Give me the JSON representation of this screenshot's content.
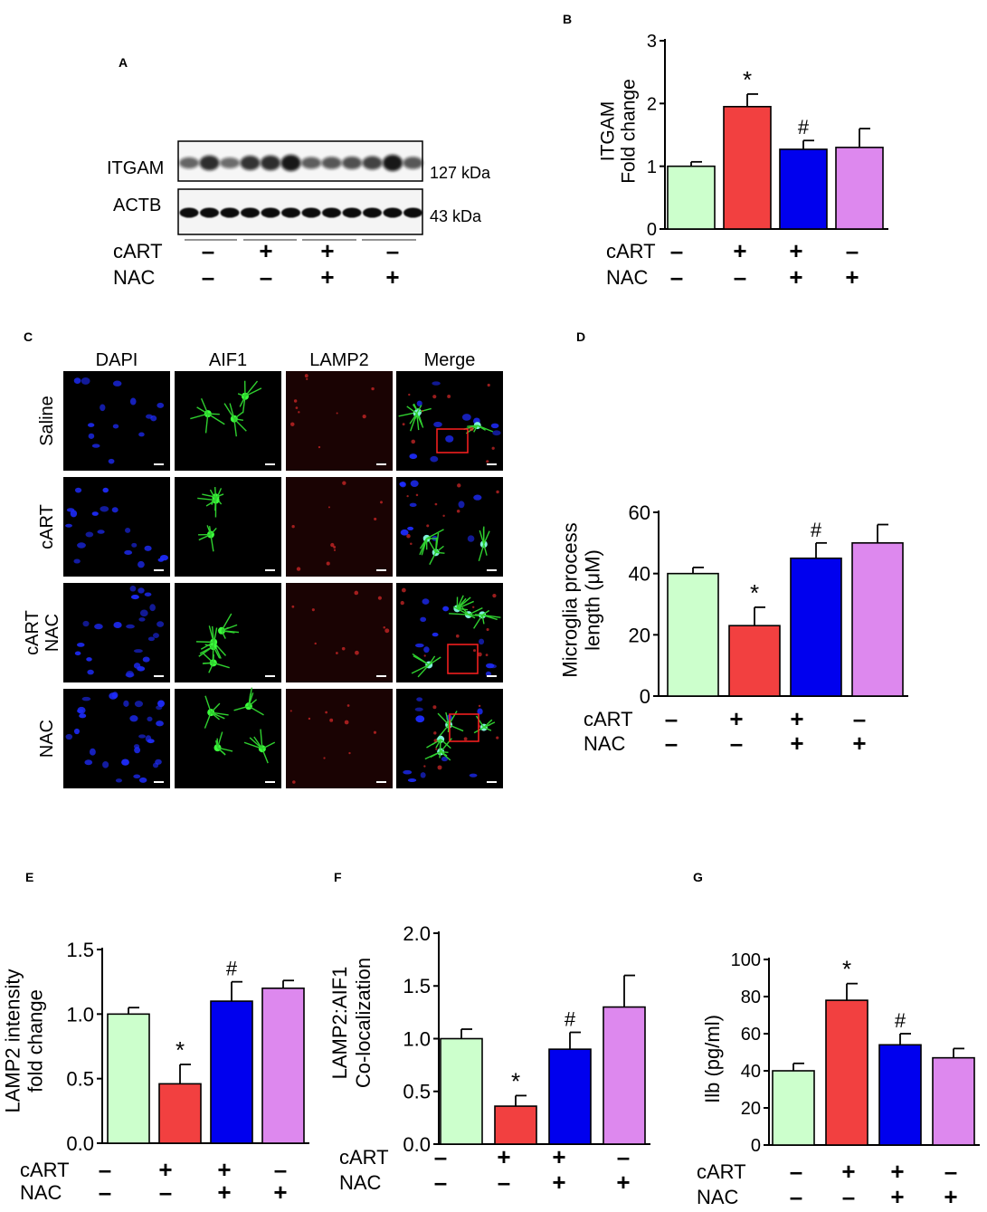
{
  "panel_labels": {
    "a": "A",
    "b": "B",
    "c": "C",
    "d": "D",
    "e": "E",
    "f": "F",
    "g": "G"
  },
  "treatment_row_labels": {
    "cart": "cART",
    "nac": "NAC"
  },
  "treatment_signs": {
    "cart": [
      "–",
      "+",
      "+",
      "–"
    ],
    "nac": [
      "–",
      "–",
      "+",
      "+"
    ]
  },
  "bar_colors": [
    "#ccffcc",
    "#f24040",
    "#0000ee",
    "#dd88ee"
  ],
  "western_blot": {
    "bands": [
      {
        "label": "ITGAM",
        "size": "127 kDa"
      },
      {
        "label": "ACTB",
        "size": "43 kDa"
      }
    ],
    "lanes": 12
  },
  "microscopy": {
    "columns": [
      "DAPI",
      "AIF1",
      "LAMP2",
      "Merge"
    ],
    "rows": [
      "Saline",
      "cART",
      "cART NAC",
      "NAC"
    ]
  },
  "chart_data": [
    {
      "panel": "B",
      "type": "bar",
      "categories": [
        "1",
        "2",
        "3",
        "4"
      ],
      "values": [
        1.0,
        1.95,
        1.27,
        1.3
      ],
      "errors": [
        0.07,
        0.2,
        0.14,
        0.3
      ],
      "annotations": [
        "",
        "*",
        "#",
        ""
      ],
      "ylabel": "ITGAM\nFold change",
      "ylim": [
        0,
        3
      ],
      "yticks": [
        "0",
        "1",
        "2",
        "3"
      ]
    },
    {
      "panel": "D",
      "type": "bar",
      "categories": [
        "1",
        "2",
        "3",
        "4"
      ],
      "values": [
        40,
        23,
        45,
        50
      ],
      "errors": [
        2,
        6,
        5,
        6
      ],
      "annotations": [
        "",
        "*",
        "#",
        ""
      ],
      "ylabel": "Microglia process\nlength (μM)",
      "ylim": [
        0,
        60
      ],
      "yticks": [
        "0",
        "20",
        "40",
        "60"
      ]
    },
    {
      "panel": "E",
      "type": "bar",
      "categories": [
        "1",
        "2",
        "3",
        "4"
      ],
      "values": [
        1.0,
        0.46,
        1.1,
        1.2
      ],
      "errors": [
        0.05,
        0.15,
        0.15,
        0.06
      ],
      "annotations": [
        "",
        "*",
        "#",
        ""
      ],
      "ylabel": "LAMP2 intensity\nfold change",
      "ylim": [
        0,
        1.5
      ],
      "yticks": [
        "0.0",
        "0.5",
        "1.0",
        "1.5"
      ]
    },
    {
      "panel": "F",
      "type": "bar",
      "categories": [
        "1",
        "2",
        "3",
        "4"
      ],
      "values": [
        1.0,
        0.36,
        0.9,
        1.3
      ],
      "errors": [
        0.09,
        0.1,
        0.16,
        0.3
      ],
      "annotations": [
        "",
        "*",
        "#",
        ""
      ],
      "ylabel": "LAMP2:AIF1\nCo-localization",
      "ylim": [
        0,
        2.0
      ],
      "yticks": [
        "0.0",
        "0.5",
        "1.0",
        "1.5",
        "2.0"
      ]
    },
    {
      "panel": "G",
      "type": "bar",
      "categories": [
        "1",
        "2",
        "3",
        "4"
      ],
      "values": [
        40,
        78,
        54,
        47
      ],
      "errors": [
        4,
        9,
        6,
        5
      ],
      "annotations": [
        "",
        "*",
        "#",
        ""
      ],
      "ylabel": "Ilb (pg/ml)",
      "ylim": [
        0,
        100
      ],
      "yticks": [
        "0",
        "20",
        "40",
        "60",
        "80",
        "100"
      ]
    }
  ]
}
